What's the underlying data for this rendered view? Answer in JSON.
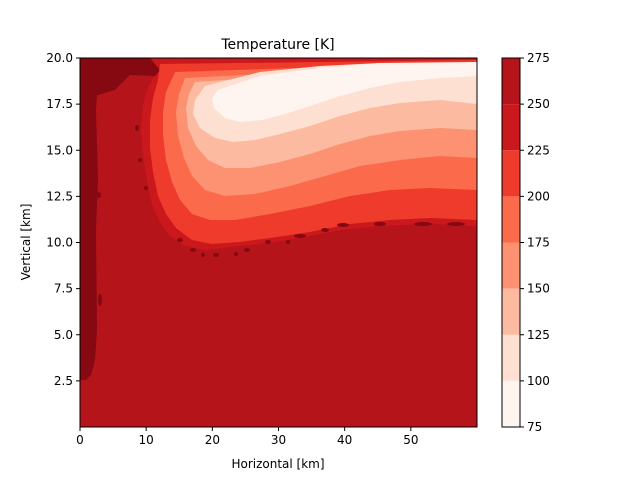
{
  "chart_data": {
    "type": "heatmap",
    "title": "Temperature [K]",
    "xlabel": "Horizontal [km]",
    "ylabel": "Vertical [km]",
    "xlim": [
      0,
      60
    ],
    "ylim": [
      0,
      20
    ],
    "xticks": [
      "0",
      "10",
      "20",
      "30",
      "40",
      "50"
    ],
    "yticks": [
      "2.5",
      "5.0",
      "7.5",
      "10.0",
      "12.5",
      "15.0",
      "17.5",
      "20.0"
    ],
    "colorbar": {
      "levels": [
        75,
        100,
        125,
        150,
        175,
        200,
        225,
        250,
        275
      ],
      "ticklabels": [
        "75",
        "100",
        "125",
        "150",
        "175",
        "200",
        "225",
        "250",
        "275"
      ],
      "colors": [
        "#fff5f0",
        "#fee0d2",
        "#fcbba1",
        "#fc9272",
        "#fb6a4a",
        "#ef3b2c",
        "#cb181d",
        "#b5141a",
        "#860811"
      ]
    },
    "field_description": {
      "background_value": 240,
      "cold_core_center_km": [
        45,
        19.5
      ],
      "cold_core_min": 80,
      "cold_region_bottom_km": 10.3,
      "cold_region_left_edge_km": 9.5
    }
  }
}
